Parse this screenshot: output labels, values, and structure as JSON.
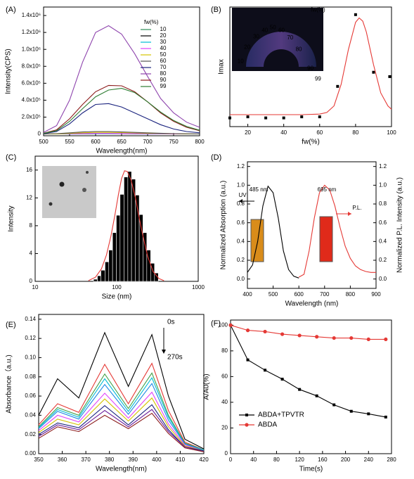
{
  "chart_data": [
    {
      "type": "line",
      "title": "(A)",
      "xlabel": "Wavelength(nm)",
      "ylabel": "Intensity(CPS)",
      "legend_title": "fw(%)",
      "x": [
        500,
        525,
        550,
        575,
        600,
        625,
        650,
        675,
        700,
        725,
        750,
        775,
        800
      ],
      "xlim": [
        500,
        800
      ],
      "xticks": [
        500,
        550,
        600,
        650,
        700,
        750,
        800
      ],
      "ylim": [
        -20000,
        1500000
      ],
      "yticks": [
        0,
        {
          "value": 200000,
          "label": "2.0x10⁵"
        },
        {
          "value": 400000,
          "label": "4.0x10⁵"
        },
        {
          "value": 600000,
          "label": "6.0x10⁵"
        },
        {
          "value": 800000,
          "label": "8.0x10⁵"
        },
        {
          "value": 1000000,
          "label": "1.0x10⁶"
        },
        {
          "value": 1200000,
          "label": "1.2x10⁶"
        },
        {
          "value": 1400000,
          "label": "1.4x10⁶"
        }
      ],
      "series": [
        {
          "name": "10",
          "color": "#2e8b57",
          "values": [
            1000,
            1500,
            2500,
            3500,
            4000,
            4000,
            3500,
            3000,
            2500,
            2000,
            1500,
            1000,
            800
          ]
        },
        {
          "name": "20",
          "color": "#000000",
          "values": [
            1000,
            1500,
            2500,
            3500,
            4500,
            4500,
            4000,
            3500,
            3000,
            2000,
            1500,
            1000,
            800
          ]
        },
        {
          "name": "30",
          "color": "#00bcd4",
          "values": [
            1200,
            2000,
            3000,
            4500,
            5500,
            5500,
            5000,
            4000,
            3000,
            2200,
            1600,
            1100,
            900
          ]
        },
        {
          "name": "40",
          "color": "#e040fb",
          "values": [
            1500,
            2500,
            4000,
            6000,
            7000,
            7000,
            6000,
            5000,
            4000,
            3000,
            2000,
            1300,
            1000
          ]
        },
        {
          "name": "50",
          "color": "#d4c400",
          "values": [
            500,
            2000,
            8000,
            15000,
            20000,
            20000,
            18000,
            15000,
            10000,
            7000,
            4000,
            2000,
            1000
          ]
        },
        {
          "name": "60",
          "color": "#555555",
          "values": [
            1000,
            5000,
            15000,
            25000,
            30000,
            30000,
            25000,
            20000,
            15000,
            10000,
            5000,
            3000,
            2000
          ]
        },
        {
          "name": "70",
          "color": "#1a237e",
          "values": [
            5000,
            30000,
            120000,
            250000,
            350000,
            360000,
            320000,
            250000,
            180000,
            110000,
            60000,
            30000,
            15000
          ]
        },
        {
          "name": "80",
          "color": "#8e44ad",
          "values": [
            20000,
            100000,
            400000,
            850000,
            1200000,
            1280000,
            1180000,
            950000,
            680000,
            420000,
            250000,
            140000,
            80000
          ]
        },
        {
          "name": "90",
          "color": "#8b1a1a",
          "values": [
            10000,
            50000,
            180000,
            350000,
            500000,
            575000,
            570000,
            500000,
            380000,
            250000,
            150000,
            80000,
            40000
          ]
        },
        {
          "name": "99",
          "color": "#2e7d32",
          "values": [
            8000,
            40000,
            150000,
            300000,
            440000,
            520000,
            540000,
            490000,
            380000,
            260000,
            160000,
            90000,
            45000
          ]
        }
      ]
    },
    {
      "type": "scatter",
      "title": "(B)",
      "xlabel": "fw(%)",
      "ylabel": "Imax",
      "inset_labels": [
        "99",
        "90",
        "80",
        "70",
        "60",
        "50",
        "40",
        "30",
        "20",
        "10",
        "fw(%)"
      ],
      "xlim": [
        10,
        100
      ],
      "xticks": [
        20,
        40,
        60,
        80,
        100
      ],
      "ylim": [
        -5,
        105
      ],
      "yticks": [],
      "series": [
        {
          "style": "markers",
          "marker": "square",
          "color": "#000000",
          "x": [
            10,
            20,
            30,
            40,
            50,
            60,
            70,
            80,
            90,
            99
          ],
          "values": [
            3,
            4,
            3,
            3,
            4,
            4,
            32,
            98,
            45,
            41
          ]
        },
        {
          "style": "line",
          "color": "#e53935",
          "x": [
            10,
            30,
            50,
            60,
            64,
            68,
            72,
            76,
            80,
            82,
            84,
            86,
            90,
            94,
            98,
            100
          ],
          "values": [
            6,
            6,
            6,
            6.5,
            8,
            14,
            34,
            66,
            91,
            95,
            92,
            82,
            52,
            26,
            14,
            11
          ]
        }
      ]
    },
    {
      "type": "histogram",
      "title": "(C)",
      "xlabel": "Size (nm)",
      "ylabel": "Intensity",
      "log_x": true,
      "bins": [
        52,
        58,
        64,
        72,
        80,
        89,
        99,
        110,
        123,
        137,
        152,
        170,
        189,
        210,
        234,
        261,
        291,
        324
      ],
      "counts": [
        0.3,
        0.8,
        1.6,
        2.8,
        4.5,
        7,
        9.5,
        12.5,
        15,
        15.8,
        14.7,
        12.4,
        9.6,
        7,
        4.5,
        2.6,
        1.2
      ],
      "color": "#000000",
      "fit": {
        "color": "#e53935",
        "x": [
          45,
          55,
          65,
          75,
          85,
          95,
          105,
          115,
          125,
          135,
          150,
          170,
          190,
          210,
          240,
          280,
          330,
          380
        ],
        "values": [
          0.1,
          0.6,
          1.8,
          3.8,
          6.5,
          9.5,
          12.5,
          14.8,
          15.9,
          15.8,
          14.6,
          12,
          9,
          6.5,
          3.6,
          1.4,
          0.4,
          0.1
        ]
      },
      "xlim": [
        10,
        1000
      ],
      "xticks": [
        10,
        100,
        1000
      ],
      "ylim": [
        0,
        18
      ],
      "yticks": [
        0,
        4,
        8,
        12,
        16
      ]
    },
    {
      "type": "line",
      "title": "(D)",
      "xlabel": "Wavelength (nm)",
      "ylabel": "Normalized Absorption (a.u.)",
      "y2label": "Normalized P.L. Intensity (a.u.)",
      "annotations": [
        "485 nm",
        "695 nm",
        "UV",
        "P.L."
      ],
      "xlim": [
        400,
        900
      ],
      "xticks": [
        400,
        500,
        600,
        700,
        800,
        900
      ],
      "ylim": [
        -0.1,
        1.25
      ],
      "yticks": [
        {
          "value": 0,
          "label": "0.0"
        },
        0.2,
        0.4,
        0.6,
        0.8,
        {
          "value": 1,
          "label": "1.0"
        },
        1.2
      ],
      "y2lim": [
        -0.1,
        1.25
      ],
      "y2ticks": [
        {
          "value": 0,
          "label": "0.0"
        },
        0.2,
        0.4,
        0.6,
        0.8,
        {
          "value": 1,
          "label": "1.0"
        },
        1.2
      ],
      "series": [
        {
          "style": "line",
          "color": "#000000",
          "x": [
            400,
            420,
            440,
            460,
            480,
            500,
            520,
            540,
            560,
            580,
            600
          ],
          "values": [
            0.07,
            0.15,
            0.4,
            0.78,
            0.99,
            0.92,
            0.65,
            0.3,
            0.1,
            0.03,
            0.01
          ]
        },
        {
          "style": "line",
          "axis": "y2",
          "color": "#e53935",
          "x": [
            600,
            620,
            640,
            660,
            680,
            700,
            720,
            740,
            760,
            780,
            800,
            820,
            840,
            860,
            880,
            900
          ],
          "values": [
            0.02,
            0.05,
            0.3,
            0.65,
            0.92,
            1.0,
            0.95,
            0.78,
            0.55,
            0.35,
            0.22,
            0.14,
            0.1,
            0.08,
            0.07,
            0.07
          ]
        }
      ]
    },
    {
      "type": "line",
      "title": "(E)",
      "xlabel": "Wavelength(nm)",
      "ylabel": "Absorbance（a.u.)",
      "annotations": [
        "0s",
        "270s"
      ],
      "x": [
        350,
        358,
        367,
        378,
        388,
        398,
        405,
        412,
        420
      ],
      "xlim": [
        350,
        420
      ],
      "xticks": [
        350,
        360,
        370,
        380,
        390,
        400,
        410,
        420
      ],
      "ylim": [
        0,
        0.145
      ],
      "yticks": [
        {
          "value": 0,
          "label": "0.00"
        },
        0.02,
        0.04,
        0.06,
        0.08,
        {
          "value": 0.1,
          "label": "0.10"
        },
        0.12,
        0.14
      ],
      "series": [
        {
          "color": "#000000",
          "values": [
            0.04,
            0.078,
            0.058,
            0.126,
            0.07,
            0.124,
            0.06,
            0.015,
            0.005
          ]
        },
        {
          "color": "#e53935",
          "values": [
            0.03,
            0.052,
            0.043,
            0.093,
            0.052,
            0.094,
            0.045,
            0.012,
            0.004
          ]
        },
        {
          "color": "#43a047",
          "values": [
            0.028,
            0.048,
            0.04,
            0.083,
            0.047,
            0.084,
            0.04,
            0.011,
            0.004
          ]
        },
        {
          "color": "#00bcd4",
          "values": [
            0.027,
            0.046,
            0.038,
            0.078,
            0.044,
            0.079,
            0.038,
            0.01,
            0.004
          ]
        },
        {
          "color": "#1e88e5",
          "values": [
            0.026,
            0.044,
            0.036,
            0.072,
            0.041,
            0.073,
            0.035,
            0.01,
            0.003
          ]
        },
        {
          "color": "#e040fb",
          "values": [
            0.024,
            0.04,
            0.033,
            0.063,
            0.037,
            0.064,
            0.031,
            0.009,
            0.003
          ]
        },
        {
          "color": "#d4c400",
          "values": [
            0.022,
            0.036,
            0.03,
            0.057,
            0.034,
            0.058,
            0.028,
            0.008,
            0.003
          ]
        },
        {
          "color": "#1a237e",
          "values": [
            0.02,
            0.032,
            0.027,
            0.05,
            0.03,
            0.051,
            0.025,
            0.007,
            0.003
          ]
        },
        {
          "color": "#6a1b9a",
          "values": [
            0.018,
            0.03,
            0.025,
            0.045,
            0.028,
            0.046,
            0.023,
            0.007,
            0.002
          ]
        },
        {
          "color": "#8b1a1a",
          "values": [
            0.016,
            0.028,
            0.023,
            0.04,
            0.026,
            0.042,
            0.021,
            0.006,
            0.002
          ]
        }
      ]
    },
    {
      "type": "line",
      "title": "(F)",
      "xlabel": "Time(s)",
      "ylabel": "A/A0(%)",
      "x": [
        0,
        30,
        60,
        90,
        120,
        150,
        180,
        210,
        240,
        270
      ],
      "xlim": [
        0,
        280
      ],
      "xticks": [
        0,
        40,
        80,
        120,
        160,
        200,
        240,
        280
      ],
      "ylim": [
        0,
        104
      ],
      "yticks": [
        0,
        20,
        40,
        60,
        80,
        100
      ],
      "series": [
        {
          "name": "ABDA+TPVTR",
          "style": "line+markers",
          "marker": "square",
          "color": "#000000",
          "values": [
            100,
            73,
            65,
            58,
            50,
            45,
            38,
            33,
            31,
            28.5
          ]
        },
        {
          "name": "ABDA",
          "style": "line+markers",
          "marker": "circle",
          "color": "#e53935",
          "values": [
            100,
            96,
            95,
            93,
            92,
            91,
            90,
            90,
            89,
            89
          ]
        }
      ]
    }
  ]
}
